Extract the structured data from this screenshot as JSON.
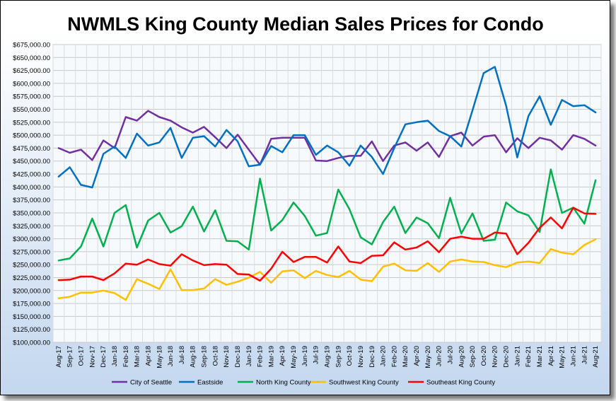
{
  "chart_data": {
    "type": "line",
    "title": "NWMLS King County Median Sales Prices for Condo",
    "xlabel": "",
    "ylabel": "",
    "ylim": [
      100000,
      675000
    ],
    "ytick_step": 25000,
    "grid": true,
    "legend_position": "bottom",
    "background": "#f7fafd",
    "x": [
      "Aug-17",
      "Sep-17",
      "Oct-17",
      "Nov-17",
      "Dec-17",
      "Jan-18",
      "Feb-18",
      "Mar-18",
      "Apr-18",
      "May-18",
      "Jun-18",
      "Jul-18",
      "Aug-18",
      "Sep-18",
      "Oct-18",
      "Nov-18",
      "Dec-18",
      "Jan-19",
      "Feb-19",
      "Mar-19",
      "Apr-19",
      "May-19",
      "Jun-19",
      "Jul-19",
      "Aug-19",
      "Sep-19",
      "Oct-19",
      "Nov-19",
      "Dec-19",
      "Jan-20",
      "Feb-20",
      "Mar-20",
      "Apr-20",
      "May-20",
      "Jun-20",
      "Jul-20",
      "Aug-20",
      "Sep-20",
      "Oct-20",
      "Nov-20",
      "Dec-20",
      "Jan-21",
      "Feb-21",
      "Mar-21",
      "Apr-21",
      "May-21",
      "Jun-21",
      "Jul-21",
      "Aug-21"
    ],
    "x_labels_shown": [
      "Aug-17",
      "Sep-17",
      "Oct-17",
      "Nov-17",
      "Dec-17",
      "Jan-18",
      "Feb-18",
      "Mar-18",
      "Apr-18",
      "May-18",
      "Jun-18",
      "Jul-18",
      "Aug-18",
      "Sep-18",
      "Oct-18",
      "Nov-18",
      "Dec-18",
      "Jan-19",
      "Feb-19",
      "Mar-19",
      "Apr-19",
      "May-19",
      "Jun-19",
      "Jul-19",
      "Aug-19",
      "Sep-19",
      "Oct-19",
      "Nov-19",
      "Dec-19",
      "Jan-20",
      "Feb-20",
      "Mar-20",
      "Apr-20",
      "May-20",
      "Jun-20",
      "Jul-20",
      "Aug-20",
      "Sep-20",
      "Oct-20",
      "Nov-20",
      "Dec-20",
      "Jan-21",
      "Feb-21",
      "Mar-21",
      "Apr-21",
      "May-21",
      "Jun-21",
      "Jul-21",
      "Aug-21"
    ],
    "series": [
      {
        "name": "City of Seattle",
        "color": "#7030a0",
        "values": [
          475000,
          466000,
          472000,
          452000,
          490000,
          475000,
          535000,
          528000,
          547000,
          535000,
          528000,
          515000,
          505000,
          516000,
          496000,
          475000,
          501000,
          472000,
          443000,
          493000,
          495000,
          495000,
          495000,
          451000,
          450000,
          456000,
          460000,
          460000,
          488000,
          450000,
          480000,
          486000,
          470000,
          486000,
          458000,
          498000,
          505000,
          480000,
          497000,
          500000,
          467000,
          494000,
          475000,
          495000,
          490000,
          472000,
          500000,
          493000,
          480000
        ]
      },
      {
        "name": "Eastside",
        "color": "#0070c0",
        "values": [
          420000,
          438000,
          404000,
          399000,
          464000,
          478000,
          456000,
          503000,
          480000,
          486000,
          514000,
          456000,
          495000,
          498000,
          478000,
          510000,
          488000,
          440000,
          443000,
          479000,
          467000,
          500000,
          500000,
          462000,
          480000,
          467000,
          441000,
          480000,
          458000,
          425000,
          475000,
          521000,
          525000,
          528000,
          508000,
          498000,
          478000,
          548000,
          620000,
          632000,
          557000,
          457000,
          537000,
          575000,
          520000,
          568000,
          556000,
          558000,
          544000
        ]
      },
      {
        "name": "North King County",
        "color": "#00b050",
        "values": [
          258000,
          262000,
          285000,
          339000,
          285000,
          350000,
          365000,
          283000,
          335000,
          350000,
          312000,
          324000,
          362000,
          314000,
          355000,
          296000,
          295000,
          279000,
          416000,
          316000,
          336000,
          370000,
          344000,
          306000,
          311000,
          395000,
          357000,
          303000,
          289000,
          332000,
          362000,
          311000,
          341000,
          330000,
          301000,
          379000,
          310000,
          349000,
          296000,
          298000,
          370000,
          353000,
          345000,
          313000,
          434000,
          350000,
          360000,
          329000,
          413000
        ]
      },
      {
        "name": "Southwest King County",
        "color": "#ffc000",
        "values": [
          185000,
          188000,
          196000,
          196000,
          200000,
          195000,
          182000,
          222000,
          213000,
          203000,
          241000,
          201000,
          201000,
          204000,
          222000,
          211000,
          217000,
          225000,
          236000,
          215000,
          237000,
          239000,
          224000,
          238000,
          230000,
          226000,
          238000,
          221000,
          218000,
          246000,
          252000,
          239000,
          238000,
          253000,
          236000,
          256000,
          260000,
          256000,
          255000,
          249000,
          245000,
          254000,
          256000,
          253000,
          280000,
          273000,
          270000,
          288000,
          299000
        ]
      },
      {
        "name": "Southeast King County",
        "color": "#ff0000",
        "values": [
          220000,
          221000,
          227000,
          227000,
          220000,
          233000,
          252000,
          250000,
          260000,
          251000,
          248000,
          270000,
          258000,
          249000,
          251000,
          250000,
          232000,
          231000,
          219000,
          242000,
          275000,
          255000,
          265000,
          265000,
          254000,
          285000,
          256000,
          253000,
          267000,
          268000,
          293000,
          279000,
          283000,
          295000,
          274000,
          300000,
          304000,
          300000,
          300000,
          312000,
          310000,
          270000,
          292000,
          321000,
          341000,
          320000,
          360000,
          349000,
          348000
        ]
      }
    ]
  }
}
